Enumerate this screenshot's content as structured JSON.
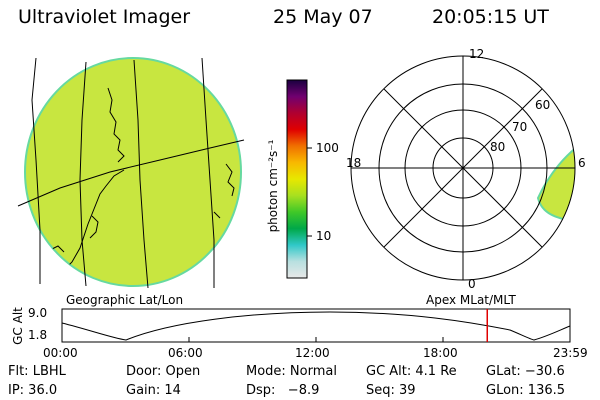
{
  "header": {
    "instrument": "Ultraviolet Imager",
    "date": "25 May 07",
    "time": "20:05:15 UT"
  },
  "colorbar": {
    "unit_label": "photon cm⁻²s⁻¹",
    "ticks": [
      {
        "value": 100,
        "label": "100"
      },
      {
        "value": 10,
        "label": "10"
      }
    ],
    "stops": [
      "#e8e8e8",
      "#b8e0e0",
      "#30c8c8",
      "#00a848",
      "#40c828",
      "#a8e020",
      "#e8e800",
      "#f8b800",
      "#f07000",
      "#e00000",
      "#b00030",
      "#700070",
      "#1a0040"
    ]
  },
  "image_colors": {
    "globe_fill": "#c8e640",
    "globe_edge": "#66d9a0",
    "polar_blob": "#c8e640",
    "lines": "#000000"
  },
  "map_labels": {
    "geographic": "Geographic Lat/Lon",
    "magnetic": "Apex MLat/MLT"
  },
  "polar_plot": {
    "mlt_labels": {
      "top": "12",
      "left": "18",
      "right": "6",
      "bottom": "0"
    },
    "lat_labels": [
      "60",
      "70",
      "80"
    ]
  },
  "altitude_plot": {
    "ylabel": "GC Alt",
    "yticks": [
      "9.0",
      "1.8"
    ],
    "xticks": [
      "00:00",
      "06:00",
      "12:00",
      "18:00",
      "23:59"
    ],
    "current_time_hours": 20.09,
    "marker_color": "#e00000"
  },
  "info": {
    "row1": {
      "flt": "Flt: LBHL",
      "door": "Door: Open",
      "mode": "Mode: Normal",
      "gcalt": "GC Alt: 4.1 Re",
      "glat": "GLat: −30.6"
    },
    "row2": {
      "ip": "IP: 36.0",
      "gain": "Gain: 14",
      "dsp": "Dsp:   −8.9",
      "seq": "Seq: 39",
      "glon": "GLon: 136.5"
    }
  }
}
